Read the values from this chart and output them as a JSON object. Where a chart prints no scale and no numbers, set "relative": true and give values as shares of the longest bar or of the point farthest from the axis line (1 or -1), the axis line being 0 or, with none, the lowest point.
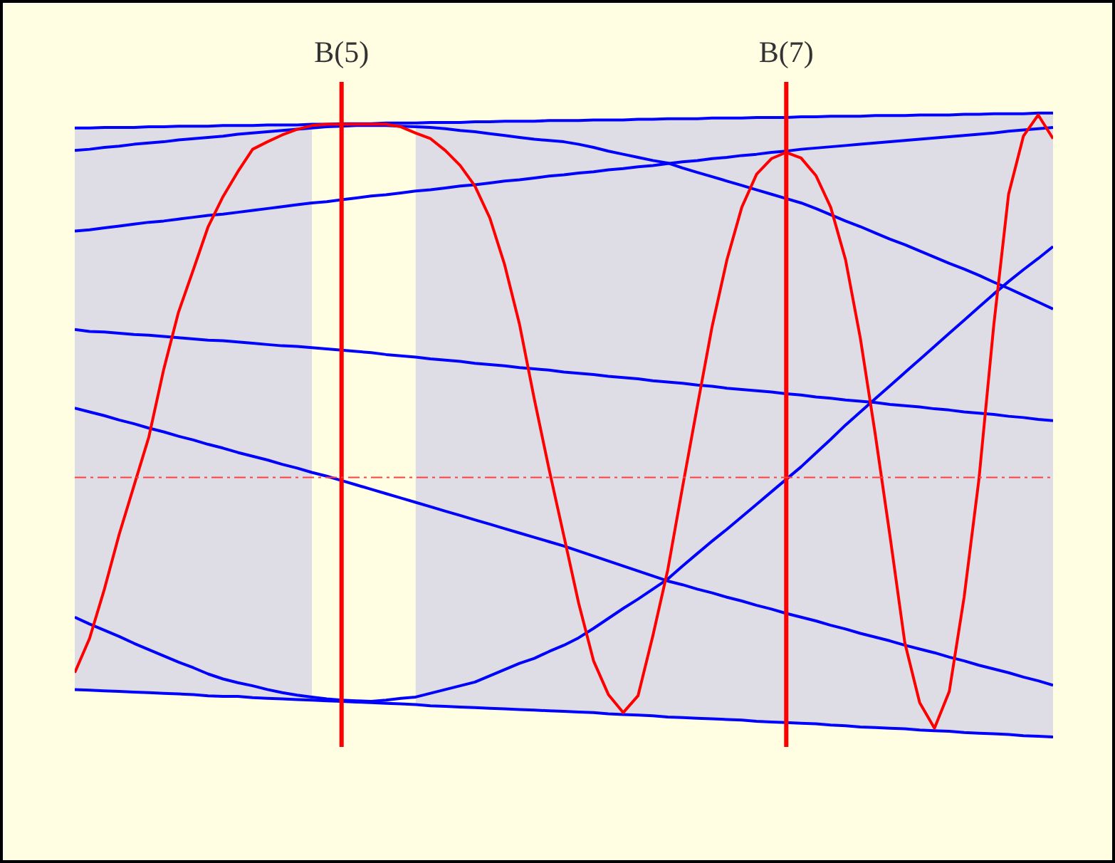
{
  "chart_data": {
    "type": "line",
    "relative": true,
    "categories": [
      null,
      null,
      null,
      null,
      null,
      null,
      null,
      null,
      null,
      null,
      null,
      null,
      null,
      null,
      null,
      null,
      null,
      null,
      "B(5)",
      null,
      null,
      null,
      null,
      null,
      null,
      null,
      null,
      null,
      null,
      null,
      null,
      null,
      null,
      null,
      null,
      null,
      null,
      null,
      null,
      null,
      null,
      null,
      null,
      null,
      null,
      null,
      null,
      null,
      "B(7)",
      null,
      null,
      null,
      null,
      null,
      null,
      null,
      null,
      null,
      null,
      null,
      null,
      null,
      null,
      null,
      null,
      null,
      null
    ],
    "series": [
      {
        "color": "#0000ff",
        "values": [
          0.976,
          0.976,
          0.977,
          0.977,
          0.977,
          0.978,
          0.978,
          0.979,
          0.979,
          0.979,
          0.98,
          0.98,
          0.98,
          0.981,
          0.981,
          0.981,
          0.982,
          0.982,
          0.983,
          0.983,
          0.983,
          0.984,
          0.984,
          0.984,
          0.985,
          0.985,
          0.985,
          0.986,
          0.986,
          0.987,
          0.987,
          0.987,
          0.988,
          0.988,
          0.988,
          0.989,
          0.989,
          0.989,
          0.99,
          0.99,
          0.991,
          0.991,
          0.991,
          0.992,
          0.992,
          0.992,
          0.993,
          0.993,
          0.993,
          0.994,
          0.994,
          0.995,
          0.995,
          0.995,
          0.996,
          0.996,
          0.996,
          0.997,
          0.997,
          0.997,
          0.998,
          0.998,
          0.999,
          0.999,
          0.999,
          1.0,
          1.0
        ],
        "lower": [
          0.076,
          0.075,
          0.074,
          0.073,
          0.072,
          0.071,
          0.07,
          0.069,
          0.068,
          0.066,
          0.065,
          0.065,
          0.063,
          0.062,
          0.061,
          0.06,
          0.059,
          null,
          null,
          null,
          null,
          null,
          null,
          0.052,
          0.05,
          0.049,
          0.048,
          0.047,
          0.046,
          0.045,
          0.044,
          0.043,
          0.042,
          0.041,
          0.04,
          0.039,
          0.037,
          0.036,
          0.035,
          0.034,
          0.032,
          0.031,
          0.03,
          0.029,
          0.028,
          0.027,
          0.025,
          0.024,
          0.023,
          0.022,
          0.021,
          0.019,
          0.018,
          0.016,
          0.015,
          0.014,
          0.013,
          0.011,
          0.01,
          0.009,
          0.007,
          0.006,
          0.005,
          0.004,
          0.002,
          0.001,
          0.0
        ],
        "upper": [
          0.976,
          0.976,
          0.977,
          0.977,
          0.977,
          0.978,
          0.978,
          0.979,
          0.979,
          0.979,
          0.98,
          0.98,
          0.98,
          0.981,
          0.981,
          0.981,
          0.982,
          null,
          null,
          null,
          null,
          null,
          null,
          0.984,
          0.985,
          0.985,
          0.985,
          0.986,
          0.986,
          0.987,
          0.987,
          0.987,
          0.988,
          0.988,
          0.988,
          0.989,
          0.989,
          0.989,
          0.99,
          0.99,
          0.991,
          0.991,
          0.991,
          0.992,
          0.992,
          0.992,
          0.993,
          0.993,
          0.993,
          0.994,
          0.994,
          0.995,
          0.995,
          0.995,
          0.996,
          0.996,
          0.996,
          0.997,
          0.997,
          0.997,
          0.998,
          0.998,
          0.999,
          0.999,
          0.999,
          1.0,
          1.0
        ]
      },
      {
        "color": "#0000ff",
        "values": [
          0.94,
          0.942,
          0.945,
          0.947,
          0.95,
          0.952,
          0.954,
          0.957,
          0.959,
          0.961,
          0.963,
          0.966,
          0.968,
          0.97,
          0.972,
          0.974,
          0.976,
          0.978,
          0.979,
          0.98,
          0.98,
          0.98,
          0.979,
          0.978,
          0.977,
          0.975,
          0.972,
          0.97,
          0.967,
          0.964,
          0.961,
          0.958,
          0.956,
          0.954,
          0.95,
          0.945,
          0.939,
          0.934,
          0.929,
          0.924,
          0.92,
          0.912,
          0.905,
          0.898,
          0.891,
          0.884,
          0.877,
          0.87,
          0.863,
          0.856,
          0.847,
          0.837,
          0.827,
          0.818,
          0.808,
          0.798,
          0.789,
          0.779,
          0.769,
          0.759,
          0.75,
          0.74,
          0.729,
          0.719,
          0.708,
          0.697,
          0.686
        ]
      },
      {
        "color": "#0000ff",
        "values": [
          0.811,
          0.813,
          0.816,
          0.819,
          0.822,
          0.825,
          0.827,
          0.83,
          0.833,
          0.836,
          0.838,
          0.841,
          0.844,
          0.847,
          0.85,
          0.853,
          0.856,
          0.858,
          0.861,
          0.864,
          0.867,
          0.869,
          0.872,
          0.875,
          0.877,
          0.88,
          0.883,
          0.885,
          0.888,
          0.891,
          0.893,
          0.896,
          0.899,
          0.901,
          0.904,
          0.906,
          0.909,
          0.911,
          0.914,
          0.916,
          0.919,
          0.922,
          0.924,
          0.927,
          0.929,
          0.932,
          0.934,
          0.937,
          0.939,
          0.942,
          0.944,
          0.946,
          0.948,
          0.95,
          0.952,
          0.954,
          0.956,
          0.958,
          0.96,
          0.962,
          0.964,
          0.966,
          0.968,
          0.971,
          0.973,
          0.975,
          0.977
        ]
      },
      {
        "color": "#0000ff",
        "values": [
          0.653,
          0.65,
          0.649,
          0.647,
          0.645,
          0.644,
          0.642,
          0.64,
          0.638,
          0.636,
          0.635,
          0.633,
          0.631,
          0.629,
          0.627,
          0.626,
          0.624,
          0.622,
          0.62,
          0.618,
          0.616,
          0.613,
          0.611,
          0.609,
          0.606,
          0.604,
          0.602,
          0.599,
          0.597,
          0.595,
          0.592,
          0.59,
          0.588,
          0.585,
          0.583,
          0.581,
          0.578,
          0.576,
          0.574,
          0.571,
          0.569,
          0.567,
          0.564,
          0.562,
          0.559,
          0.557,
          0.555,
          0.553,
          0.55,
          0.548,
          0.545,
          0.543,
          0.54,
          0.538,
          0.536,
          0.533,
          0.531,
          0.529,
          0.526,
          0.524,
          0.521,
          0.519,
          0.517,
          0.514,
          0.512,
          0.509,
          0.507
        ]
      },
      {
        "color": "#0000ff",
        "values": [
          0.527,
          0.521,
          0.515,
          0.508,
          0.502,
          0.495,
          0.489,
          0.482,
          0.476,
          0.469,
          0.463,
          0.456,
          0.45,
          0.444,
          0.437,
          0.431,
          0.424,
          0.418,
          0.411,
          0.404,
          0.397,
          0.39,
          0.383,
          0.376,
          0.369,
          0.362,
          0.355,
          0.348,
          0.341,
          0.334,
          0.327,
          0.32,
          0.313,
          0.306,
          0.298,
          0.29,
          0.282,
          0.274,
          0.266,
          0.258,
          0.25,
          0.244,
          0.237,
          0.231,
          0.224,
          0.218,
          0.211,
          0.205,
          0.198,
          0.192,
          0.186,
          0.179,
          0.173,
          0.166,
          0.16,
          0.154,
          0.147,
          0.141,
          0.135,
          0.128,
          0.122,
          0.115,
          0.109,
          0.103,
          0.096,
          0.09,
          0.083
        ]
      },
      {
        "color": "#0000ff",
        "values": [
          0.192,
          0.181,
          0.171,
          0.161,
          0.15,
          0.14,
          0.13,
          0.12,
          0.111,
          0.101,
          0.093,
          0.087,
          0.082,
          0.076,
          0.071,
          0.067,
          0.064,
          0.061,
          0.059,
          0.058,
          0.057,
          0.059,
          0.062,
          0.064,
          0.07,
          0.076,
          0.082,
          0.088,
          0.098,
          0.108,
          0.118,
          0.126,
          0.137,
          0.147,
          0.159,
          0.174,
          0.19,
          0.206,
          0.221,
          0.237,
          0.253,
          0.274,
          0.294,
          0.314,
          0.333,
          0.353,
          0.373,
          0.393,
          0.413,
          0.433,
          0.455,
          0.477,
          0.5,
          0.521,
          0.542,
          0.563,
          0.584,
          0.605,
          0.626,
          0.647,
          0.668,
          0.689,
          0.71,
          0.73,
          0.749,
          0.767,
          0.786
        ]
      },
      {
        "color": "#0000ff",
        "values": [
          0.076,
          0.075,
          0.074,
          0.073,
          0.072,
          0.071,
          0.07,
          0.069,
          0.068,
          0.066,
          0.065,
          0.065,
          0.063,
          0.062,
          0.061,
          0.06,
          0.059,
          0.058,
          0.057,
          0.056,
          0.055,
          0.054,
          0.053,
          0.052,
          0.05,
          0.049,
          0.048,
          0.047,
          0.046,
          0.045,
          0.044,
          0.043,
          0.042,
          0.041,
          0.04,
          0.039,
          0.037,
          0.036,
          0.035,
          0.034,
          0.032,
          0.031,
          0.03,
          0.029,
          0.028,
          0.027,
          0.025,
          0.024,
          0.023,
          0.022,
          0.021,
          0.019,
          0.018,
          0.016,
          0.015,
          0.014,
          0.013,
          0.011,
          0.01,
          0.009,
          0.007,
          0.006,
          0.005,
          0.004,
          0.002,
          0.001,
          0.0
        ]
      },
      {
        "color": "#ff0000",
        "values": [
          0.103,
          0.158,
          0.237,
          0.325,
          0.403,
          0.481,
          0.589,
          0.681,
          0.749,
          0.818,
          0.866,
          0.906,
          0.942,
          0.954,
          0.965,
          0.974,
          0.98,
          0.982,
          0.982,
          0.982,
          0.982,
          0.982,
          0.978,
          0.968,
          0.959,
          0.94,
          0.916,
          0.883,
          0.832,
          0.757,
          0.662,
          0.542,
          0.429,
          0.322,
          0.214,
          0.122,
          0.068,
          0.039,
          0.066,
          0.162,
          0.267,
          0.4,
          0.53,
          0.658,
          0.765,
          0.849,
          0.902,
          0.927,
          0.937,
          0.928,
          0.9,
          0.849,
          0.765,
          0.639,
          0.486,
          0.322,
          0.151,
          0.055,
          0.014,
          0.073,
          0.224,
          0.413,
          0.66,
          0.87,
          0.963,
          0.997,
          0.959
        ]
      }
    ],
    "ref_lines": [
      {
        "axis": "x",
        "value": "B(5)",
        "color": "#ff0000"
      },
      {
        "axis": "x",
        "value": "B(7)",
        "color": "#ff0000"
      },
      {
        "axis": "y",
        "value": 0.416,
        "color": "#ff4040",
        "line_style": "dashed"
      }
    ],
    "grid": false,
    "line_style": "solid"
  }
}
